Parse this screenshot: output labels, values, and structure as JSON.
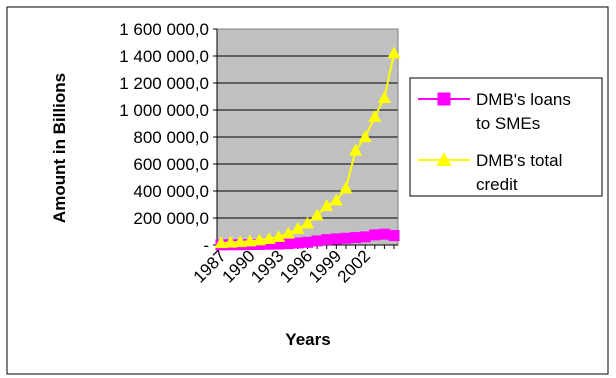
{
  "chart_data": {
    "type": "line",
    "xlabel": "Years",
    "ylabel": "Amount in Billions",
    "ylim": [
      0,
      1600000
    ],
    "y_ticks": [
      {
        "value": 0,
        "label": "-"
      },
      {
        "value": 200000,
        "label": "200 000,0"
      },
      {
        "value": 400000,
        "label": "400 000,0"
      },
      {
        "value": 600000,
        "label": "600 000,0"
      },
      {
        "value": 800000,
        "label": "800 000,0"
      },
      {
        "value": 1000000,
        "label": "1 000 000,0"
      },
      {
        "value": 1200000,
        "label": "1 200 000,0"
      },
      {
        "value": 1400000,
        "label": "1 400 000,0"
      },
      {
        "value": 1600000,
        "label": "1 600 000,0"
      }
    ],
    "x": [
      1987,
      1988,
      1989,
      1990,
      1991,
      1992,
      1993,
      1994,
      1995,
      1996,
      1997,
      1998,
      1999,
      2000,
      2001,
      2002,
      2003,
      2004,
      2005
    ],
    "x_tick_labels": [
      "1987",
      "1990",
      "1993",
      "1996",
      "1999",
      "2002"
    ],
    "x_tick_values": [
      1987,
      1990,
      1993,
      1996,
      1999,
      2002
    ],
    "grid": true,
    "legend_position": "right",
    "series": [
      {
        "name": "DMB's loans to SMEs",
        "color": "#ff00ff",
        "marker": "square",
        "values": [
          1000,
          1500,
          2000,
          3000,
          4000,
          5500,
          7000,
          10000,
          15000,
          20000,
          30000,
          40000,
          45000,
          50000,
          55000,
          60000,
          75000,
          80000,
          70000
        ]
      },
      {
        "name": "DMB's total credit",
        "color": "#ffff00",
        "marker": "triangle",
        "values": [
          15000,
          18000,
          22000,
          28000,
          35000,
          45000,
          60000,
          85000,
          120000,
          160000,
          220000,
          290000,
          330000,
          420000,
          700000,
          800000,
          950000,
          1090000,
          1420000
        ]
      }
    ]
  }
}
